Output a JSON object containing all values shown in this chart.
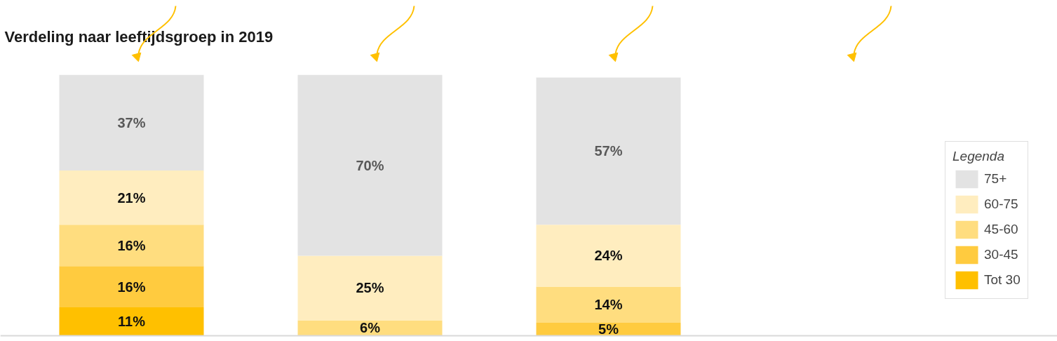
{
  "chart_data": {
    "type": "bar",
    "title": "Verdeling naar leeftijdsgroep in 2019",
    "stacked": true,
    "legend": "right",
    "legend_title": "Legenda",
    "categories": [
      null,
      null,
      null
    ],
    "series": [
      {
        "name": "Tot 30",
        "color": "#ffc000",
        "values": [
          11,
          0,
          0
        ],
        "value_labels": [
          "11%",
          null,
          null
        ]
      },
      {
        "name": "30-45",
        "color": "#ffcb3f",
        "values": [
          16,
          0,
          5
        ],
        "value_labels": [
          "16%",
          null,
          "5%"
        ]
      },
      {
        "name": "45-60",
        "color": "#ffdd7f",
        "values": [
          16,
          6,
          14
        ],
        "value_labels": [
          "16%",
          "6%",
          "14%"
        ]
      },
      {
        "name": "60-75",
        "color": "#ffedbf",
        "values": [
          21,
          25,
          24
        ],
        "value_labels": [
          "21%",
          "25%",
          "24%"
        ]
      },
      {
        "name": "75+",
        "color": "#e3e3e3",
        "values": [
          37,
          70,
          57
        ],
        "value_labels": [
          "37%",
          "70%",
          "57%"
        ]
      }
    ]
  }
}
